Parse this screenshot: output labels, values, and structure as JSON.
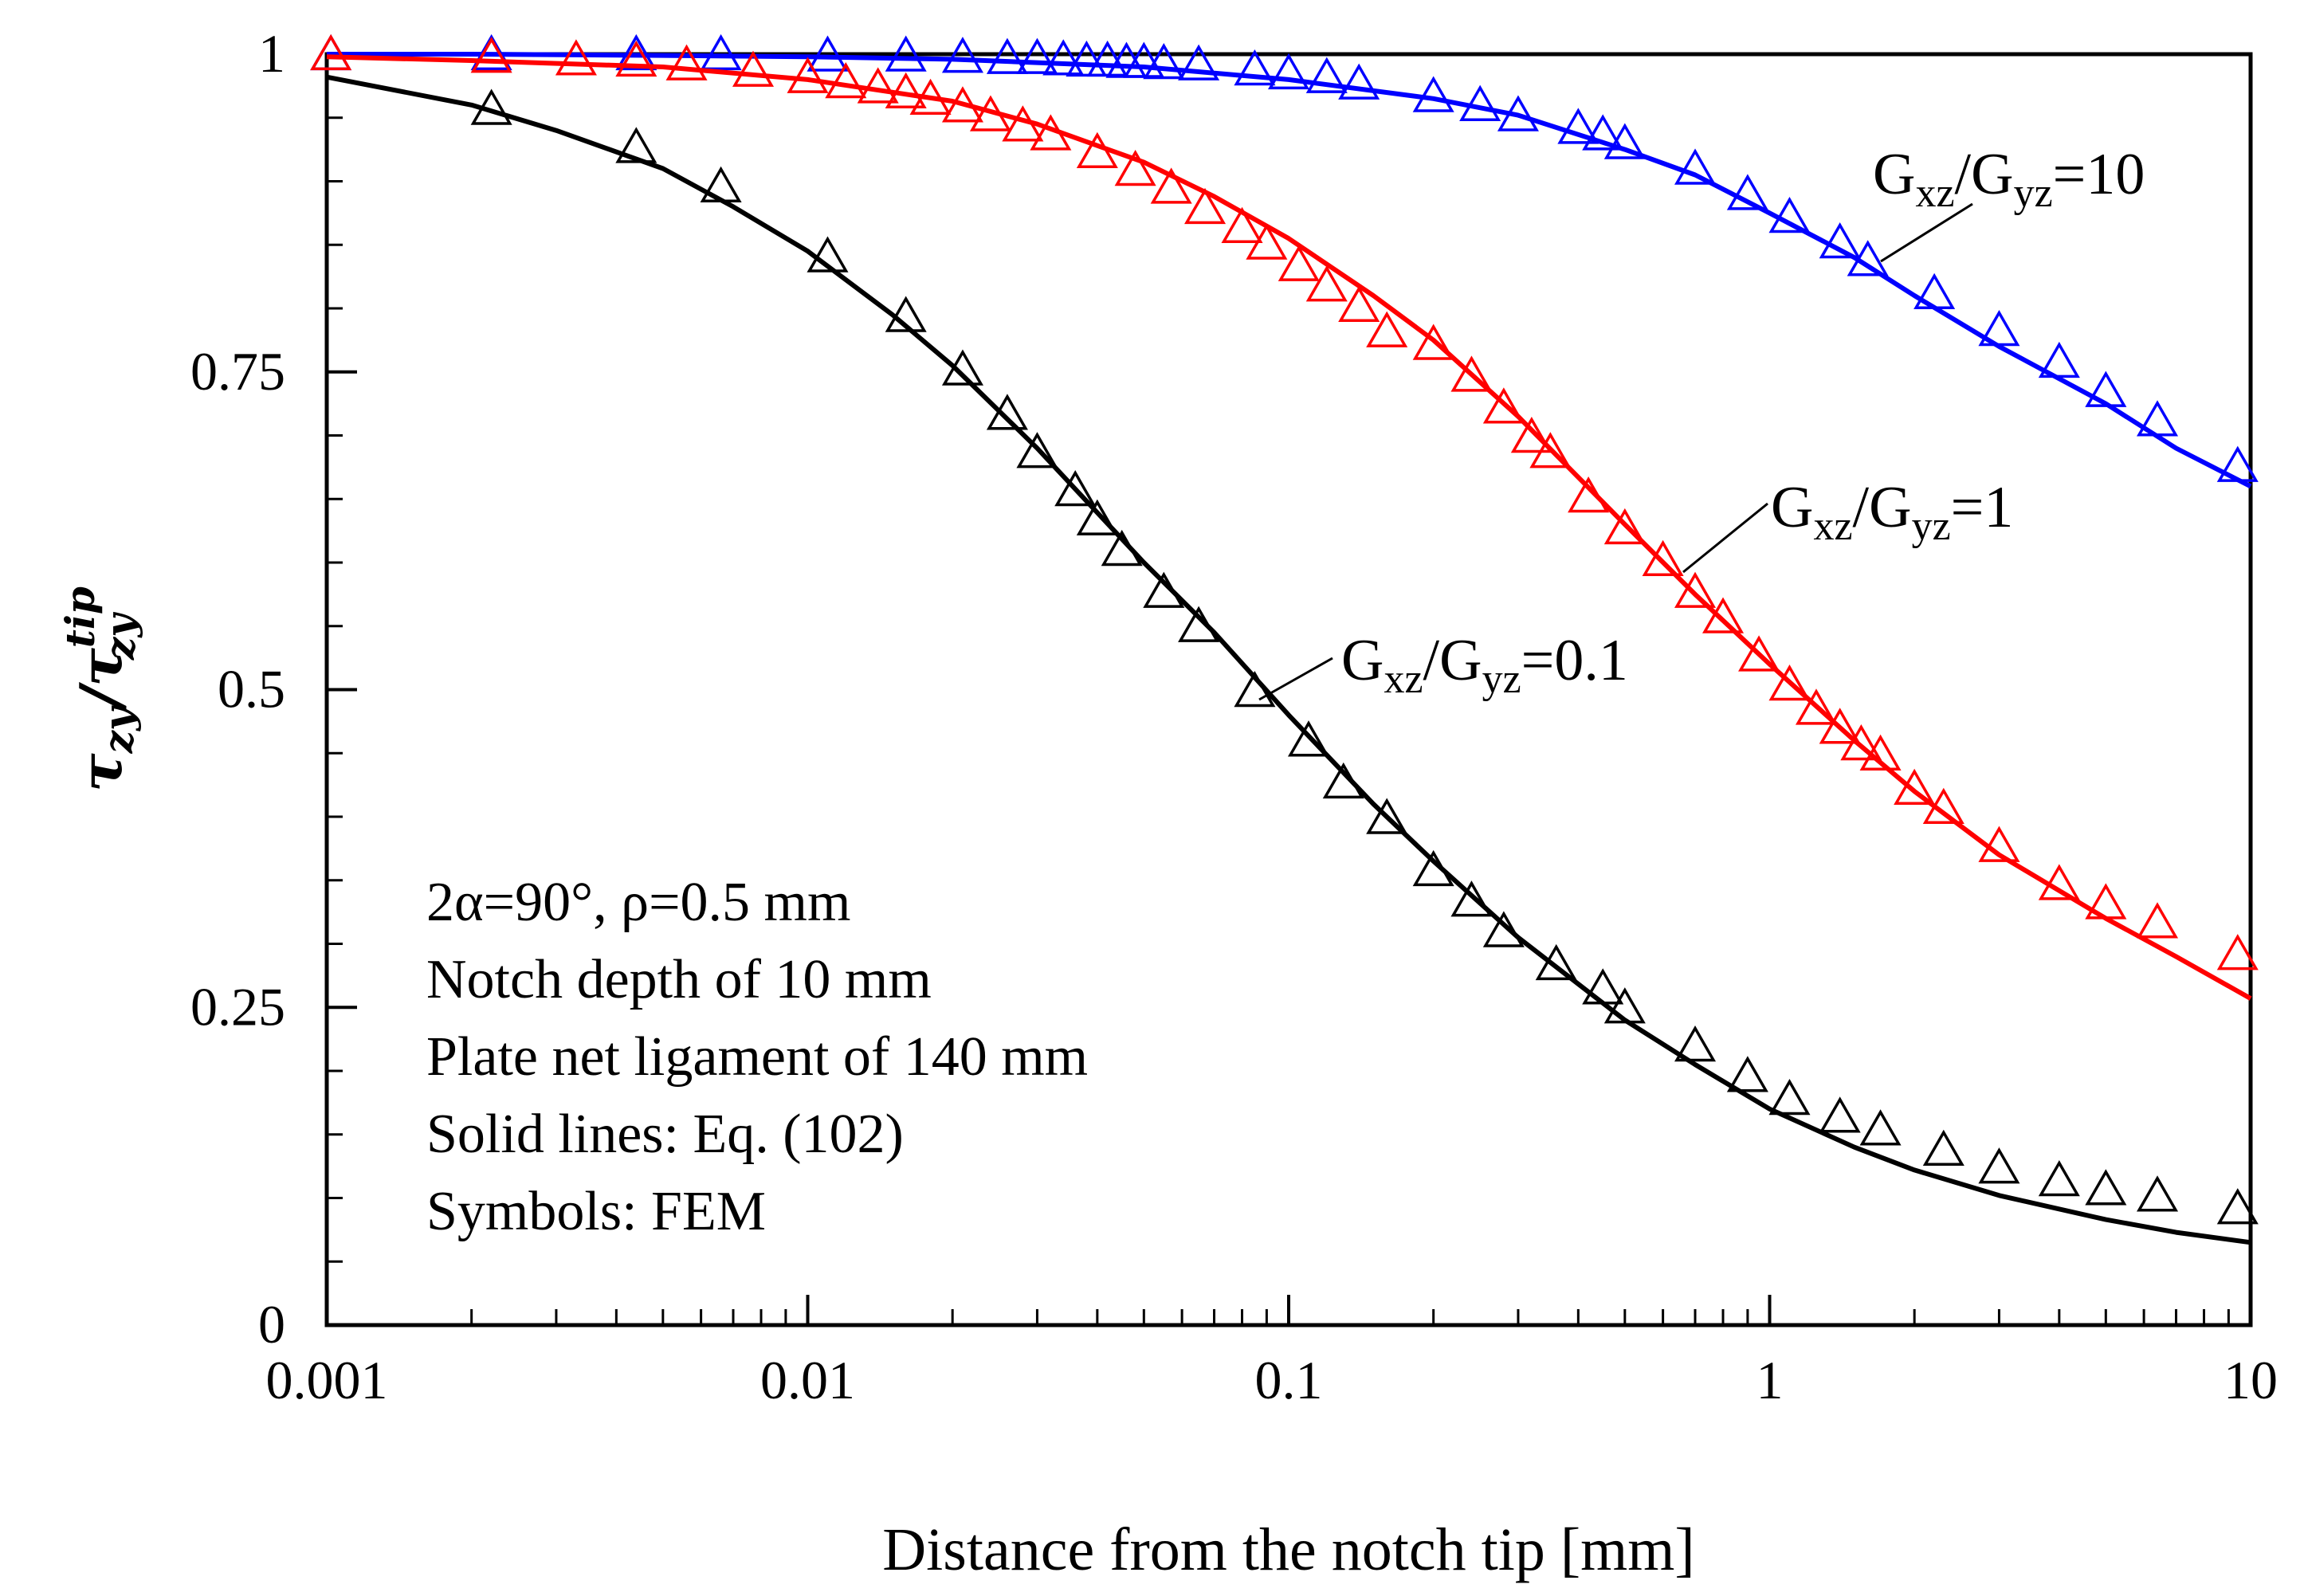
{
  "chart_data": {
    "type": "scatter",
    "title": "",
    "xlabel": "Distance from the notch tip [mm]",
    "ylabel": {
      "base": "τ",
      "num_sub": "zy",
      "sep": "/",
      "den_base": "τ",
      "den_sub": "zy",
      "den_sup": "tip"
    },
    "xscale": "log",
    "xlim": [
      0.001,
      10
    ],
    "ylim": [
      0,
      1
    ],
    "xticks": [
      {
        "value": 0.001,
        "label": "0.001"
      },
      {
        "value": 0.01,
        "label": "0.01"
      },
      {
        "value": 0.1,
        "label": "0.1"
      },
      {
        "value": 1,
        "label": "1"
      },
      {
        "value": 10,
        "label": "10"
      }
    ],
    "yticks": [
      {
        "value": 0,
        "label": "0"
      },
      {
        "value": 0.25,
        "label": "0.25"
      },
      {
        "value": 0.5,
        "label": "0.5"
      },
      {
        "value": 0.75,
        "label": "0.75"
      },
      {
        "value": 1,
        "label": "1"
      }
    ],
    "annotations": [
      "2α=90°, ρ=0.5 mm",
      "Notch depth of 10 mm",
      "Plate net ligament of 140 mm",
      "Solid lines: Eq. (102)",
      "Symbols: FEM"
    ],
    "series": [
      {
        "name": "Gxz/Gyz=10",
        "label": {
          "G1": "G",
          "s1": "xz",
          "slash": "/",
          "G2": "G",
          "s2": "yz",
          "eq": "=10"
        },
        "color": "#0000ff",
        "line": {
          "x": [
            0.001,
            0.002,
            0.005,
            0.01,
            0.02,
            0.05,
            0.1,
            0.2,
            0.3,
            0.5,
            0.7,
            1,
            1.5,
            2,
            3,
            5,
            7,
            10
          ],
          "y": [
            1.0,
            1.0,
            0.999,
            0.998,
            0.996,
            0.99,
            0.98,
            0.965,
            0.952,
            0.925,
            0.905,
            0.875,
            0.84,
            0.81,
            0.77,
            0.725,
            0.69,
            0.66
          ]
        },
        "markers": {
          "x": [
            0.00102,
            0.0022,
            0.0044,
            0.0066,
            0.011,
            0.016,
            0.021,
            0.026,
            0.03,
            0.034,
            0.038,
            0.042,
            0.046,
            0.05,
            0.055,
            0.065,
            0.085,
            0.1,
            0.12,
            0.14,
            0.2,
            0.25,
            0.3,
            0.4,
            0.45,
            0.5,
            0.7,
            0.9,
            1.1,
            1.4,
            1.6,
            2.2,
            3,
            4,
            5,
            6.4,
            9.4
          ],
          "y": [
            0.998,
            0.998,
            0.998,
            0.998,
            0.997,
            0.997,
            0.996,
            0.995,
            0.995,
            0.994,
            0.993,
            0.993,
            0.992,
            0.992,
            0.991,
            0.99,
            0.986,
            0.983,
            0.98,
            0.975,
            0.965,
            0.958,
            0.95,
            0.94,
            0.935,
            0.928,
            0.908,
            0.888,
            0.87,
            0.85,
            0.836,
            0.81,
            0.781,
            0.756,
            0.733,
            0.71,
            0.674
          ]
        }
      },
      {
        "name": "Gxz/Gyz=1",
        "label": {
          "G1": "G",
          "s1": "xz",
          "slash": "/",
          "G2": "G",
          "s2": "yz",
          "eq": "=1"
        },
        "color": "#ff0000",
        "line": {
          "x": [
            0.001,
            0.002,
            0.005,
            0.01,
            0.02,
            0.03,
            0.05,
            0.07,
            0.1,
            0.15,
            0.2,
            0.3,
            0.5,
            0.7,
            1,
            1.5,
            2,
            3,
            5,
            7,
            10
          ],
          "y": [
            0.998,
            0.995,
            0.99,
            0.98,
            0.963,
            0.945,
            0.915,
            0.888,
            0.855,
            0.81,
            0.775,
            0.715,
            0.63,
            0.575,
            0.52,
            0.46,
            0.42,
            0.37,
            0.32,
            0.29,
            0.257
          ]
        },
        "markers": {
          "x": [
            0.00102,
            0.0022,
            0.0033,
            0.0044,
            0.0056,
            0.0077,
            0.01,
            0.012,
            0.014,
            0.016,
            0.018,
            0.021,
            0.024,
            0.028,
            0.032,
            0.04,
            0.048,
            0.057,
            0.067,
            0.08,
            0.09,
            0.105,
            0.12,
            0.14,
            0.16,
            0.2,
            0.24,
            0.28,
            0.32,
            0.35,
            0.42,
            0.5,
            0.6,
            0.7,
            0.8,
            0.95,
            1.1,
            1.25,
            1.4,
            1.55,
            1.7,
            2,
            2.3,
            3,
            4,
            5,
            6.4,
            9.4
          ],
          "y": [
            0.998,
            0.996,
            0.994,
            0.993,
            0.99,
            0.985,
            0.98,
            0.976,
            0.972,
            0.968,
            0.963,
            0.957,
            0.95,
            0.942,
            0.935,
            0.921,
            0.907,
            0.893,
            0.877,
            0.862,
            0.849,
            0.832,
            0.816,
            0.8,
            0.78,
            0.77,
            0.745,
            0.72,
            0.697,
            0.685,
            0.65,
            0.625,
            0.6,
            0.575,
            0.555,
            0.525,
            0.502,
            0.483,
            0.468,
            0.455,
            0.447,
            0.42,
            0.405,
            0.375,
            0.345,
            0.33,
            0.315,
            0.29
          ]
        }
      },
      {
        "name": "Gxz/Gyz=0.1",
        "label": {
          "G1": "G",
          "s1": "xz",
          "slash": "/",
          "G2": "G",
          "s2": "yz",
          "eq": "=0.1"
        },
        "color": "#000000",
        "line": {
          "x": [
            0.001,
            0.002,
            0.003,
            0.005,
            0.007,
            0.01,
            0.015,
            0.02,
            0.03,
            0.05,
            0.07,
            0.1,
            0.15,
            0.2,
            0.3,
            0.5,
            0.7,
            1,
            1.5,
            2,
            3,
            5,
            7,
            10
          ],
          "y": [
            0.982,
            0.96,
            0.94,
            0.91,
            0.88,
            0.845,
            0.795,
            0.755,
            0.69,
            0.6,
            0.545,
            0.48,
            0.41,
            0.365,
            0.305,
            0.24,
            0.205,
            0.17,
            0.14,
            0.122,
            0.102,
            0.083,
            0.073,
            0.065
          ]
        },
        "markers": {
          "x": [
            0.0022,
            0.0044,
            0.0066,
            0.011,
            0.016,
            0.021,
            0.026,
            0.03,
            0.036,
            0.04,
            0.045,
            0.055,
            0.065,
            0.085,
            0.11,
            0.13,
            0.16,
            0.2,
            0.24,
            0.28,
            0.36,
            0.45,
            0.5,
            0.7,
            0.9,
            1.1,
            1.4,
            1.7,
            2.3,
            3,
            4,
            5,
            6.4,
            9.4
          ],
          "y": [
            0.955,
            0.925,
            0.894,
            0.839,
            0.792,
            0.75,
            0.715,
            0.685,
            0.655,
            0.632,
            0.608,
            0.575,
            0.548,
            0.497,
            0.458,
            0.425,
            0.397,
            0.356,
            0.332,
            0.308,
            0.282,
            0.263,
            0.248,
            0.218,
            0.194,
            0.176,
            0.162,
            0.152,
            0.136,
            0.122,
            0.112,
            0.105,
            0.1,
            0.09
          ]
        }
      }
    ]
  }
}
